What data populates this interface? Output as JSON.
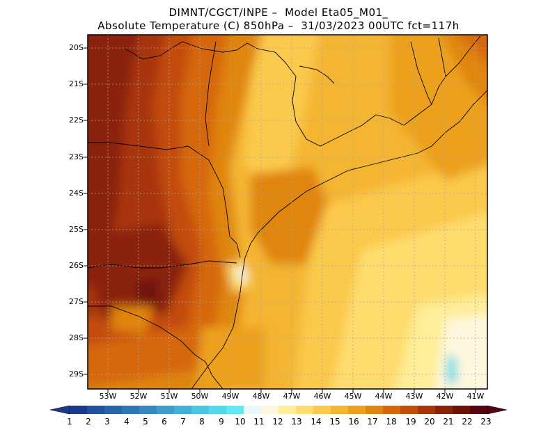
{
  "title": {
    "line1": "DIMNT/CGCT/INPE –  Model Eta05_M01_",
    "line2": "Absolute Temperature (C) 850hPa –  31/03/2023 00UTC fct=117h"
  },
  "map": {
    "lat_labels": [
      "20S",
      "21S",
      "22S",
      "23S",
      "24S",
      "25S",
      "26S",
      "27S",
      "28S",
      "29S"
    ],
    "lon_labels": [
      "53W",
      "52W",
      "51W",
      "50W",
      "49W",
      "48W",
      "47W",
      "46W",
      "45W",
      "44W",
      "43W",
      "42W",
      "41W"
    ]
  },
  "colorbar": {
    "labels": [
      "1",
      "2",
      "3",
      "4",
      "5",
      "6",
      "7",
      "8",
      "9",
      "10",
      "11",
      "12",
      "13",
      "14",
      "15",
      "16",
      "17",
      "18",
      "19",
      "20",
      "21",
      "22",
      "23"
    ],
    "colors": [
      "#1c3a8c",
      "#21529e",
      "#2565a8",
      "#2c79b6",
      "#3688c0",
      "#3d9ccb",
      "#43b1d6",
      "#4bc5e0",
      "#53d8ea",
      "#5cebf4",
      "#e8f8f8",
      "#fff7dd",
      "#ffee99",
      "#fedd6e",
      "#fbc94b",
      "#f4b530",
      "#eca01c",
      "#e0850f",
      "#d5670a",
      "#c24c08",
      "#a83608",
      "#8a2208",
      "#6e1407",
      "#55050f"
    ],
    "left_arrow_color": "#1c3a8c",
    "right_arrow_color": "#55050f"
  }
}
